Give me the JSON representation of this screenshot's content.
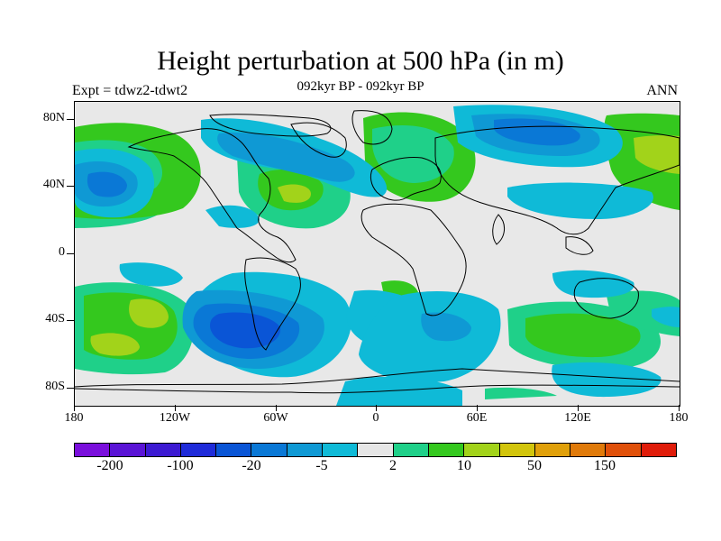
{
  "title": "Height perturbation at 500 hPa (in m)",
  "subtitle": "092kyr BP - 092kyr BP",
  "left_label": "Expt = tdwz2-tdwt2",
  "right_label": "ANN",
  "lat_labels": [
    "80N",
    "40N",
    "0",
    "40S",
    "80S"
  ],
  "lon_labels": [
    "180",
    "120W",
    "60W",
    "0",
    "60E",
    "120E",
    "180"
  ],
  "colorbar": {
    "colors": [
      "#7a0fdc",
      "#5a14d6",
      "#3c1ad2",
      "#1f2bd9",
      "#0a55d6",
      "#0a78d6",
      "#0f99d4",
      "#0fbad7",
      "#e6e6e6",
      "#1fd089",
      "#34c81e",
      "#a2d31a",
      "#d2c50c",
      "#e0a00a",
      "#e07a0a",
      "#e0500a",
      "#e01c0a"
    ],
    "labels": [
      "-200",
      "-100",
      "-20",
      "-5",
      "2",
      "10",
      "50",
      "150"
    ]
  },
  "palette": {
    "background": "#e8e8e8",
    "neg_light": "#0fbad7",
    "neg_mid": "#0f99d4",
    "neg_strong": "#0a78d6",
    "neg_core": "#0a55d6",
    "pos_light": "#1fd089",
    "pos_mid": "#34c81e",
    "pos_strong": "#a2d31a",
    "pos_core": "#d2c50c"
  }
}
